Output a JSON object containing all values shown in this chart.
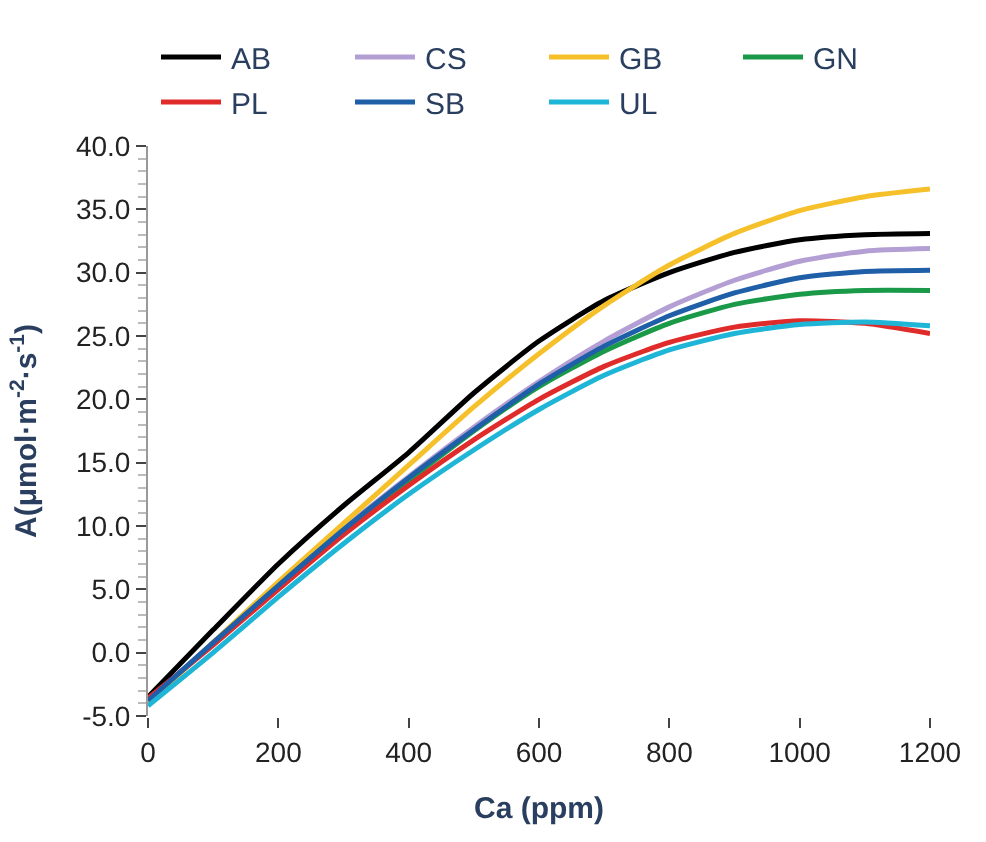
{
  "chart_data": {
    "type": "line",
    "xlabel": "Ca (ppm)",
    "ylabel": "A(μmol·m$^{-2}$·s$^{-1}$)",
    "x": [
      0,
      100,
      200,
      300,
      400,
      500,
      600,
      700,
      800,
      900,
      1000,
      1100,
      1200
    ],
    "series": [
      {
        "name": "AB",
        "color": "#000000",
        "values": [
          -3.5,
          1.8,
          7.0,
          11.6,
          15.8,
          20.5,
          24.6,
          27.8,
          30.0,
          31.6,
          32.6,
          33.0,
          33.1
        ]
      },
      {
        "name": "CS",
        "color": "#b49fd4",
        "values": [
          -3.8,
          0.8,
          5.4,
          9.8,
          13.9,
          17.8,
          21.4,
          24.6,
          27.3,
          29.4,
          30.9,
          31.7,
          31.9
        ]
      },
      {
        "name": "GB",
        "color": "#f5c02a",
        "values": [
          -4.0,
          0.8,
          5.6,
          10.2,
          14.8,
          19.4,
          23.6,
          27.4,
          30.6,
          33.1,
          34.9,
          36.0,
          36.6
        ]
      },
      {
        "name": "GN",
        "color": "#1a9a48",
        "values": [
          null,
          null,
          null,
          9.6,
          13.6,
          17.5,
          21.0,
          23.8,
          26.0,
          27.5,
          28.3,
          28.6,
          28.6
        ]
      },
      {
        "name": "PL",
        "color": "#e02b2b",
        "values": [
          -3.6,
          0.6,
          5.0,
          9.3,
          13.2,
          16.8,
          20.0,
          22.6,
          24.5,
          25.7,
          26.2,
          26.0,
          25.2
        ]
      },
      {
        "name": "SB",
        "color": "#1f5fa8",
        "values": [
          -3.8,
          0.8,
          5.3,
          9.7,
          13.8,
          17.6,
          21.2,
          24.2,
          26.6,
          28.4,
          29.6,
          30.1,
          30.2
        ]
      },
      {
        "name": "UL",
        "color": "#1fb5d6",
        "values": [
          -4.2,
          0.0,
          4.4,
          8.6,
          12.5,
          16.0,
          19.2,
          21.9,
          23.9,
          25.2,
          25.9,
          26.1,
          25.8
        ]
      }
    ],
    "xlim": [
      0,
      1200
    ],
    "xticks": [
      0,
      200,
      400,
      600,
      800,
      1000,
      1200
    ],
    "ylim": [
      -5,
      40
    ],
    "yticks": [
      {
        "value": -5,
        "label": "-5.0"
      },
      {
        "value": 0,
        "label": "0.0"
      },
      {
        "value": 5,
        "label": "5.0"
      },
      {
        "value": 10,
        "label": "10.0"
      },
      {
        "value": 15,
        "label": "15.0"
      },
      {
        "value": 20,
        "label": "20.0"
      },
      {
        "value": 25,
        "label": "25.0"
      },
      {
        "value": 30,
        "label": "30.0"
      },
      {
        "value": 35,
        "label": "35.0"
      },
      {
        "value": 40,
        "label": "40.0"
      }
    ],
    "legend": "top",
    "marker": "none",
    "line_style": "solid"
  }
}
